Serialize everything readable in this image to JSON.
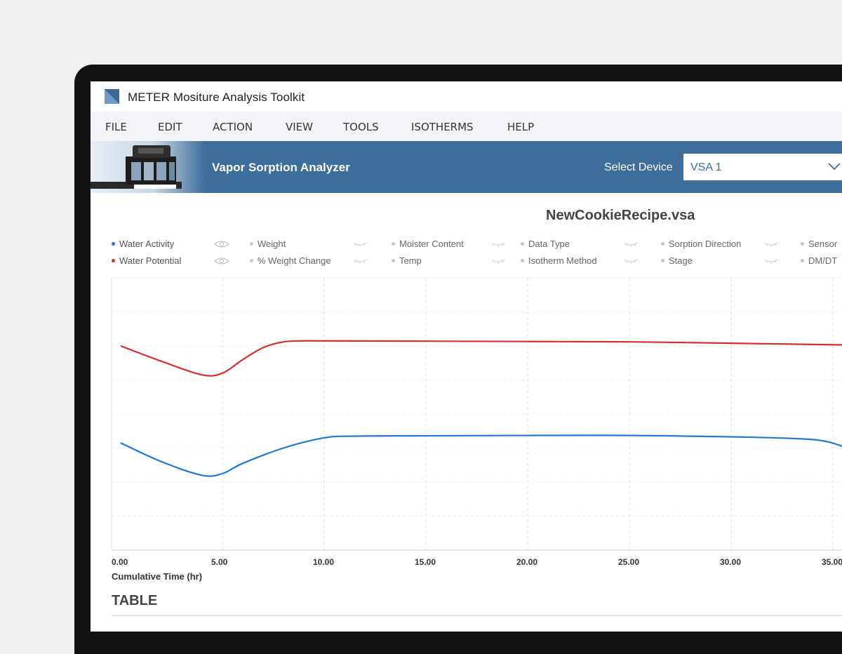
{
  "window": {
    "title": "METER Mositure Analysis Toolkit"
  },
  "menu": [
    "FILE",
    "EDIT",
    "ACTION",
    "VIEW",
    "TOOLS",
    "ISOTHERMS",
    "HELP"
  ],
  "banner": {
    "title": "Vapor Sorption Analyzer",
    "select_label": "Select Device",
    "select_value": "VSA 1",
    "color": "#3d6d99"
  },
  "document": {
    "title": "NewCookieRecipe.vsa"
  },
  "legend": [
    {
      "label": "Water Activity",
      "color": "#1f78d1",
      "active": true,
      "icon": "eye-icon"
    },
    {
      "label": "Water Potential",
      "color": "#d32f2f",
      "active": true,
      "icon": "eye-icon"
    },
    {
      "label": "Weight",
      "active": false,
      "icon": "eye-closed-icon"
    },
    {
      "label": "% Weight Change",
      "active": false,
      "icon": "eye-closed-icon"
    },
    {
      "label": "Moister Content",
      "active": false,
      "icon": "eye-closed-icon"
    },
    {
      "label": "Temp",
      "active": false,
      "icon": "eye-closed-icon"
    },
    {
      "label": "Data Type",
      "active": false,
      "icon": "eye-closed-icon"
    },
    {
      "label": "Isotherm Method",
      "active": false,
      "icon": "eye-closed-icon"
    },
    {
      "label": "Sorption Direction",
      "active": false,
      "icon": "eye-closed-icon"
    },
    {
      "label": "Stage",
      "active": false,
      "icon": "eye-closed-icon"
    },
    {
      "label": "Sensor",
      "active": false,
      "icon": "eye-closed-icon"
    },
    {
      "label": "DM/DT",
      "active": false,
      "icon": "eye-closed-icon"
    }
  ],
  "chart_data": {
    "type": "line",
    "xlabel": "Cumulative Time (hr)",
    "x_ticks": [
      "0.00",
      "5.00",
      "10.00",
      "15.00",
      "20.00",
      "25.00",
      "30.00",
      "35.00"
    ],
    "xlim": [
      -0.4,
      35.5
    ],
    "ylim": [
      0,
      8
    ],
    "grid": true,
    "y_ticks_shown": false,
    "series": [
      {
        "name": "Water Potential",
        "color": "#d32f2f",
        "x": [
          0,
          2,
          4,
          5,
          6,
          7,
          8,
          9,
          10,
          15,
          20,
          25,
          30,
          35.5
        ],
        "y": [
          6.0,
          5.55,
          5.15,
          5.2,
          5.6,
          5.95,
          6.12,
          6.15,
          6.15,
          6.14,
          6.13,
          6.12,
          6.08,
          6.03
        ]
      },
      {
        "name": "Water Activity",
        "color": "#1f78d1",
        "x": [
          0,
          2,
          4,
          5,
          6,
          8,
          10,
          11.5,
          15,
          20,
          25,
          30,
          34,
          35.5
        ],
        "y": [
          3.15,
          2.6,
          2.2,
          2.25,
          2.55,
          3.0,
          3.3,
          3.35,
          3.36,
          3.37,
          3.37,
          3.33,
          3.25,
          3.05
        ]
      }
    ]
  },
  "table": {
    "title": "TABLE"
  }
}
